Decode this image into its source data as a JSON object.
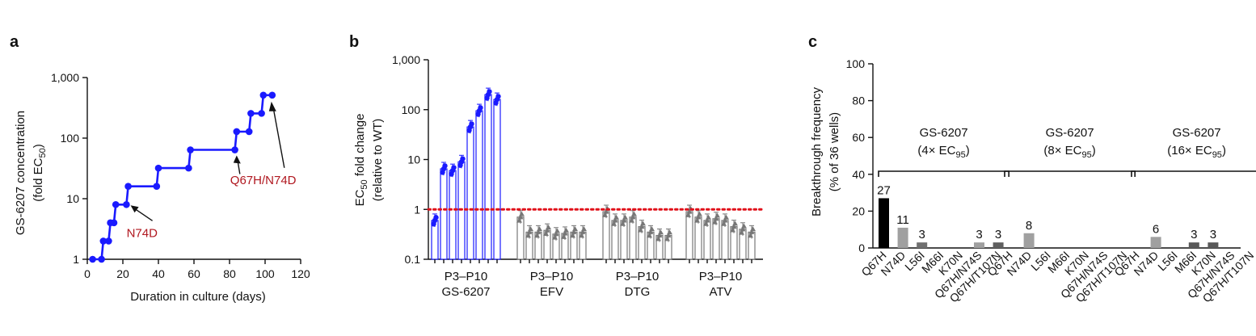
{
  "panels": {
    "a": {
      "letter": "a",
      "chart_data": {
        "type": "line",
        "xlabel": "Duration in culture (days)",
        "ylabel_main": "GS-6207 concentration",
        "ylabel_sub_pre": "(fold EC",
        "ylabel_sub_sub": "50",
        "ylabel_sub_post": ")",
        "yscale": "log",
        "xlim": [
          0,
          120
        ],
        "ylim": [
          1,
          1000
        ],
        "x_ticks": [
          0,
          20,
          40,
          60,
          80,
          100,
          120
        ],
        "x_tick_labels": [
          "0",
          "20",
          "40",
          "60",
          "80",
          "100",
          "120"
        ],
        "y_ticks": [
          1,
          10,
          100,
          1000
        ],
        "y_tick_labels": [
          "1",
          "10",
          "100",
          "1,000"
        ],
        "color": "#1a1aff",
        "series": [
          {
            "x": [
              3,
              8,
              9,
              12,
              13,
              15,
              16,
              21,
              22,
              23,
              39,
              40,
              57,
              58,
              83,
              84,
              91,
              92,
              98,
              99,
              104
            ],
            "y": [
              1,
              1,
              2,
              2,
              4,
              4,
              8,
              8,
              8,
              16,
              16,
              32,
              32,
              64,
              64,
              128,
              128,
              256,
              256,
              512,
              512
            ],
            "markers_x": [
              3,
              8,
              9,
              12,
              13,
              15,
              16,
              22,
              23,
              39,
              40,
              57,
              58,
              83,
              84,
              91,
              92,
              98,
              99,
              104
            ],
            "markers_y": [
              1,
              1,
              2,
              2,
              4,
              4,
              8,
              8,
              16,
              16,
              32,
              32,
              64,
              64,
              128,
              128,
              256,
              256,
              512,
              512
            ]
          }
        ],
        "annotations": [
          {
            "text": "N74D",
            "point_x": 23,
            "point_y": 8
          },
          {
            "text": "Q67H/N74D",
            "point_x": 104,
            "point_y": 512
          }
        ]
      }
    },
    "b": {
      "letter": "b",
      "chart_data": {
        "type": "bar",
        "yscale": "log",
        "ylim": [
          0.1,
          1000
        ],
        "y_ticks": [
          0.1,
          1,
          10,
          100,
          1000
        ],
        "y_tick_labels": [
          "0.1",
          "1",
          "10",
          "100",
          "1,000"
        ],
        "ylabel_main_pre": "EC",
        "ylabel_main_sub": "50",
        "ylabel_main_post": " fold change",
        "ylabel_sub": "(relative to WT)",
        "reference_line": 1,
        "reference_color": "#e0101a",
        "groups": [
          {
            "label_top": "P3–P10",
            "label_bottom": "GS-6207",
            "color": "#1a1aff",
            "marker": "circle",
            "values": [
              0.6,
              6.5,
              6,
              9,
              45,
              95,
              200,
              160
            ]
          },
          {
            "label_top": "P3–P10",
            "label_bottom": "EFV",
            "color": "#777777",
            "marker": "triangle",
            "values": [
              0.7,
              0.35,
              0.35,
              0.38,
              0.32,
              0.33,
              0.35,
              0.35
            ]
          },
          {
            "label_top": "P3–P10",
            "label_bottom": "DTG",
            "color": "#777777",
            "marker": "triangle",
            "values": [
              0.9,
              0.6,
              0.6,
              0.7,
              0.45,
              0.35,
              0.3,
              0.3
            ]
          },
          {
            "label_top": "P3–P10",
            "label_bottom": "ATV",
            "color": "#777777",
            "marker": "triangle",
            "values": [
              0.9,
              0.7,
              0.6,
              0.65,
              0.6,
              0.45,
              0.4,
              0.35
            ]
          }
        ]
      }
    },
    "c": {
      "letter": "c",
      "chart_data": {
        "type": "bar",
        "ylim": [
          0,
          100
        ],
        "y_ticks": [
          0,
          20,
          40,
          60,
          80,
          100
        ],
        "y_tick_labels": [
          "0",
          "20",
          "40",
          "60",
          "80",
          "100"
        ],
        "ylabel_main": "Breakthrough frequency",
        "ylabel_sub": "(% of 36 wells)",
        "categories": [
          "Q67H",
          "N74D",
          "L56I",
          "M66I",
          "K70N",
          "Q67H/N74S",
          "Q67H/T107N"
        ],
        "category_colors": [
          "#000000",
          "#a0a0a0",
          "#707070",
          "#5a5a5a",
          "#5a5a5a",
          "#a0a0a0",
          "#606060"
        ],
        "groups": [
          {
            "name_line1": "GS-6207",
            "name_line2_pre": "(4× EC",
            "name_line2_sub": "95",
            "name_line2_post": ")",
            "values": [
              27,
              11,
              3,
              0,
              0,
              3,
              3
            ],
            "labels": [
              "27",
              "11",
              "3",
              "",
              "",
              "3",
              "3"
            ]
          },
          {
            "name_line1": "GS-6207",
            "name_line2_pre": "(8× EC",
            "name_line2_sub": "95",
            "name_line2_post": ")",
            "values": [
              0,
              8,
              0,
              0,
              0,
              0,
              0
            ],
            "labels": [
              "",
              "8",
              "",
              "",
              "",
              "",
              ""
            ]
          },
          {
            "name_line1": "GS-6207",
            "name_line2_pre": "(16× EC",
            "name_line2_sub": "95",
            "name_line2_post": ")",
            "values": [
              0,
              6,
              0,
              3,
              3,
              0,
              0
            ],
            "labels": [
              "",
              "6",
              "",
              "3",
              "3",
              "",
              ""
            ]
          }
        ]
      }
    }
  }
}
